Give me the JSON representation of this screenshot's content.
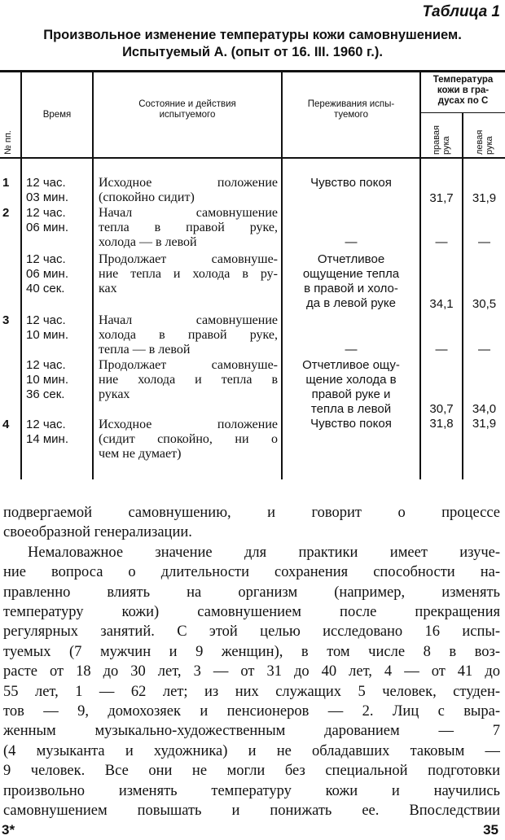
{
  "table_caption": "Таблица 1",
  "title_line1": "Произвольное изменение температуры кожи самовнушением.",
  "title_line2": "Испытуемый А. (опыт от 16. III. 1960 г.).",
  "headers": {
    "num": "№ пп.",
    "time": "Время",
    "state": [
      "Состояние и действия",
      "испытуемого"
    ],
    "feeling": [
      "Переживания испы-",
      "туемого"
    ],
    "temp": [
      "Температура",
      "кожи в гра-",
      "дусах по С"
    ],
    "right": [
      "правая",
      "рука"
    ],
    "left": [
      "левая",
      "рука"
    ]
  },
  "rows": [
    {
      "num": "1",
      "time": [
        "12 час.",
        "03 мин."
      ],
      "state": [
        "Исходное положение",
        "(спокойно сидит)"
      ],
      "feeling": [
        "Чувство покоя"
      ],
      "right": "31,7",
      "left": "31,9"
    },
    {
      "num": "2",
      "time": [
        "12 час.",
        "06 мин."
      ],
      "state": [
        "Начал самовнушение",
        "тепла в правой руке,",
        "холода — в левой"
      ],
      "feeling": [
        "—"
      ],
      "right": "—",
      "left": "—"
    },
    {
      "num": "",
      "time": [
        "12 час.",
        "06 мин.",
        "40 сек."
      ],
      "state": [
        "Продолжает самовнуше-",
        "ние тепла и холода в ру-",
        "ках"
      ],
      "feeling": [
        "Отчетливое",
        "ощущение тепла",
        "в правой и холо-",
        "да в левой руке"
      ],
      "right": "34,1",
      "left": "30,5"
    },
    {
      "num": "3",
      "time": [
        "12 час.",
        "10 мин."
      ],
      "state": [
        "Начал самовнушение",
        "холода в правой руке,",
        "тепла — в левой"
      ],
      "feeling": [
        "—"
      ],
      "right": "—",
      "left": "—"
    },
    {
      "num": "",
      "time": [
        "12 час.",
        "10 мин.",
        "36 сек."
      ],
      "state": [
        "Продолжает самовнуше-",
        "ние холода и тепла в",
        "руках"
      ],
      "feeling": [
        "Отчетливое ощу-",
        "щение холода в",
        "правой руке и",
        "тепла в левой"
      ],
      "right": "30,7",
      "left": "34,0"
    },
    {
      "num": "4",
      "time": [
        "12 час.",
        "14 мин."
      ],
      "state": [
        "Исходное положение",
        "(сидит спокойно, ни о",
        "чем не думает)"
      ],
      "feeling": [
        "Чувство покоя"
      ],
      "right": "31,8",
      "left": "31,9"
    }
  ],
  "body_lines": [
    "подвергаемой самовнушению, и говорит о процессе",
    "своеобразной генерализации.",
    "Немаловажное значение для практики имеет изуче-",
    "ние вопроса о длительности сохранения способности на-",
    "правленно влиять на организм (например, изменять",
    "температуру кожи) самовнушением после прекращения",
    "регулярных занятий. С этой целью исследовано 16 испы-",
    "туемых (7 мужчин и 9 женщин), в том числе 8 в воз-",
    "расте от 18 до 30 лет, 3 — от 31 до 40 лет, 4 — от 41 до",
    "55 лет, 1 — 62 лет; из них служащих 5 человек, студен-",
    "тов — 9, домохозяек и пенсионеров — 2. Лиц с выра-",
    "женным музыкально-художественным дарованием — 7",
    "(4 музыканта и художника) и не обладавших таковым —",
    "9 человек. Все они не могли без специальной подготовки",
    "произвольно изменять температуру кожи и научились",
    "самовнушением повышать и понижать ее. Впоследствии"
  ],
  "footer": {
    "signature": "3*",
    "page_number": "35"
  }
}
